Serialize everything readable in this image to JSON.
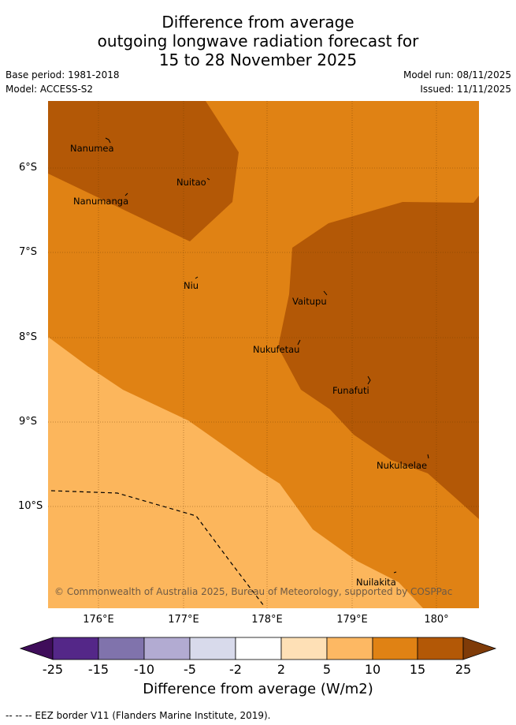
{
  "title": {
    "line1": "Difference from average",
    "line2": "outgoing longwave radiation forecast for",
    "line3": "15 to 28 November 2025"
  },
  "meta": {
    "base_period": "Base period: 1981-2018",
    "model": "Model: ACCESS-S2",
    "model_run": "Model run: 08/11/2025",
    "issued": "Issued: 11/11/2025"
  },
  "map": {
    "lat_labels": [
      "6°S",
      "7°S",
      "8°S",
      "9°S",
      "10°S"
    ],
    "lon_labels": [
      "176°E",
      "177°E",
      "178°E",
      "179°E",
      "180°"
    ],
    "places": [
      {
        "name": "Nanumea"
      },
      {
        "name": "Nuitao"
      },
      {
        "name": "Nanumanga"
      },
      {
        "name": "Niu"
      },
      {
        "name": "Vaitupu"
      },
      {
        "name": "Nukufetau"
      },
      {
        "name": "Funafuti"
      },
      {
        "name": "Nukulaelae"
      },
      {
        "name": "Nuilakita"
      }
    ],
    "copyright": "© Commonwealth of Australia 2025, Bureau of Meteorology, supported by COSPPac",
    "colors": {
      "band_5_10": "#fcb65c",
      "band_10_15": "#e08214",
      "band_15_25": "#b35806"
    }
  },
  "colorbar": {
    "ticks": [
      "-25",
      "-15",
      "-10",
      "-5",
      "-2",
      "2",
      "5",
      "10",
      "15",
      "25"
    ],
    "colors": [
      "#3f0d5a",
      "#542788",
      "#8073ac",
      "#b2abd2",
      "#d8daeb",
      "#ffffff",
      "#fee0b6",
      "#fdb863",
      "#e08214",
      "#b35806",
      "#7f3b08"
    ],
    "label": "Difference from average (W/m2)"
  },
  "footer": "--  --  -- EEZ border V11 (Flanders Marine Institute, 2019)."
}
